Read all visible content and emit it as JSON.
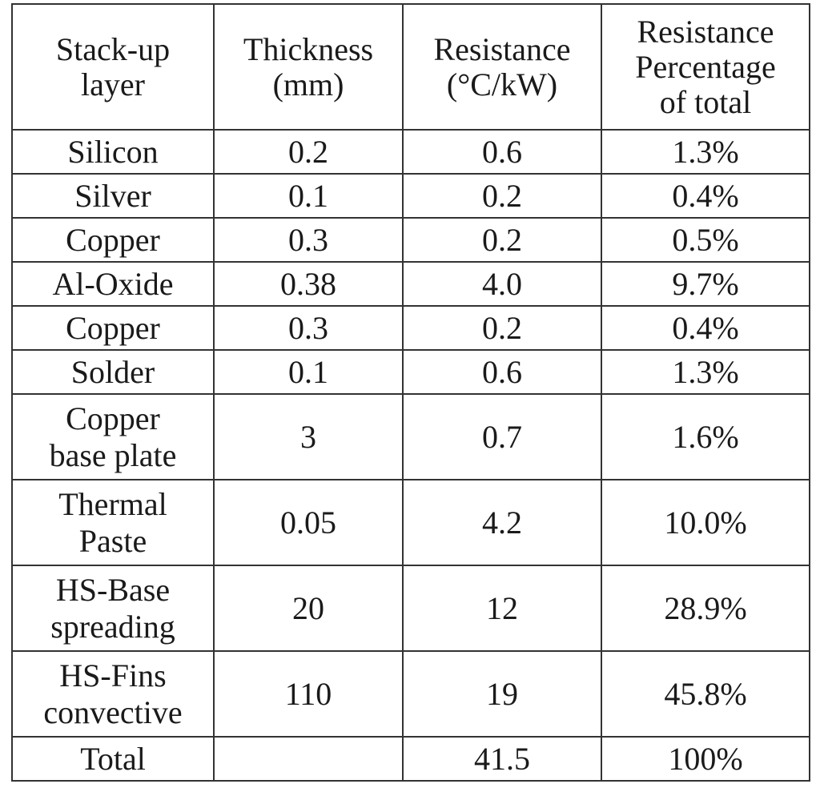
{
  "table": {
    "headers": [
      [
        "Stack-up",
        "layer"
      ],
      [
        "Thickness",
        "(mm)"
      ],
      [
        "Resistance",
        "(°C/kW)"
      ],
      [
        "Resistance",
        "Percentage",
        "of total"
      ]
    ],
    "rows": [
      {
        "layer": [
          "Silicon"
        ],
        "thickness": "0.2",
        "resistance": "0.6",
        "percentage": "1.3%"
      },
      {
        "layer": [
          "Silver"
        ],
        "thickness": "0.1",
        "resistance": "0.2",
        "percentage": "0.4%"
      },
      {
        "layer": [
          "Copper"
        ],
        "thickness": "0.3",
        "resistance": "0.2",
        "percentage": "0.5%"
      },
      {
        "layer": [
          "Al-Oxide"
        ],
        "thickness": "0.38",
        "resistance": "4.0",
        "percentage": "9.7%"
      },
      {
        "layer": [
          "Copper"
        ],
        "thickness": "0.3",
        "resistance": "0.2",
        "percentage": "0.4%"
      },
      {
        "layer": [
          "Solder"
        ],
        "thickness": "0.1",
        "resistance": "0.6",
        "percentage": "1.3%"
      },
      {
        "layer": [
          "Copper",
          "base plate"
        ],
        "thickness": "3",
        "resistance": "0.7",
        "percentage": "1.6%"
      },
      {
        "layer": [
          "Thermal",
          "Paste"
        ],
        "thickness": "0.05",
        "resistance": "4.2",
        "percentage": "10.0%"
      },
      {
        "layer": [
          "HS-Base",
          "spreading"
        ],
        "thickness": "20",
        "resistance": "12",
        "percentage": "28.9%"
      },
      {
        "layer": [
          "HS-Fins",
          "convective"
        ],
        "thickness": "110",
        "resistance": "19",
        "percentage": "45.8%"
      }
    ],
    "total": {
      "label": "Total",
      "thickness": "",
      "resistance": "41.5",
      "percentage": "100%"
    }
  }
}
